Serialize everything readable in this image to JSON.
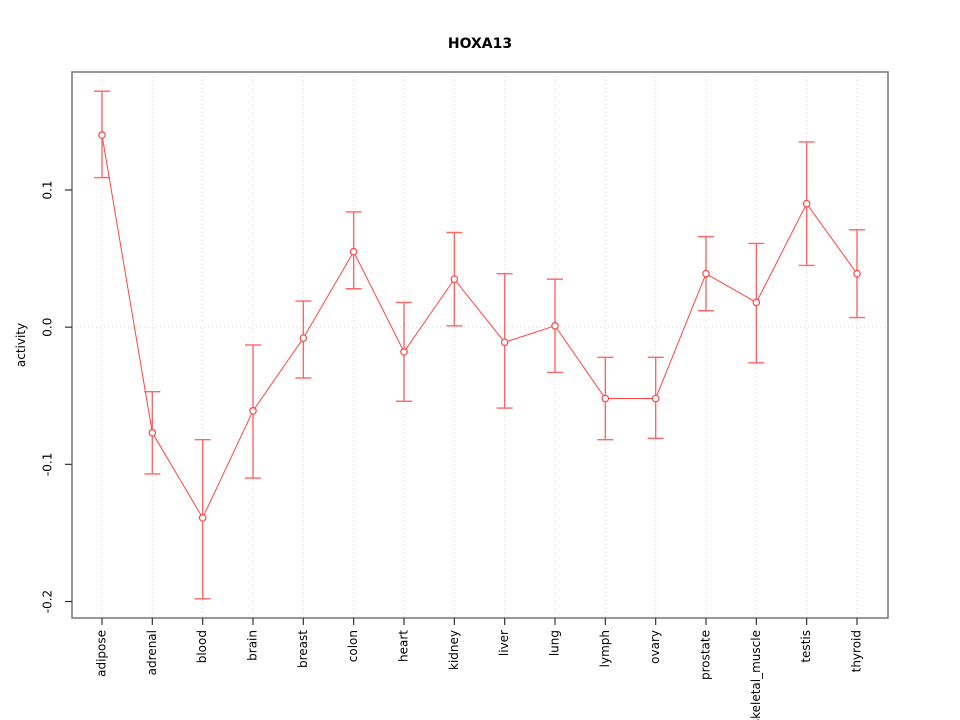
{
  "chart_data": {
    "type": "line",
    "title": "HOXA13",
    "xlabel": "",
    "ylabel": "activity",
    "categories": [
      "adipose",
      "adrenal",
      "blood",
      "brain",
      "breast",
      "colon",
      "heart",
      "kidney",
      "liver",
      "lung",
      "lymph",
      "ovary",
      "prostate",
      "skeletal_muscle",
      "testis",
      "thyroid"
    ],
    "series": [
      {
        "name": "activity",
        "values": [
          0.14,
          -0.077,
          -0.139,
          -0.061,
          -0.008,
          0.055,
          -0.018,
          0.035,
          -0.011,
          0.001,
          -0.052,
          -0.052,
          0.039,
          0.018,
          0.09,
          0.039
        ],
        "error_low": [
          0.109,
          -0.107,
          -0.198,
          -0.11,
          -0.037,
          0.028,
          -0.054,
          0.001,
          -0.059,
          -0.033,
          -0.082,
          -0.081,
          0.012,
          -0.026,
          0.045,
          0.007
        ],
        "error_high": [
          0.172,
          -0.047,
          -0.082,
          -0.013,
          0.019,
          0.084,
          0.018,
          0.069,
          0.039,
          0.035,
          -0.022,
          -0.022,
          0.066,
          0.061,
          0.135,
          0.071
        ]
      }
    ],
    "yticks": [
      0.1,
      0.0,
      -0.1,
      -0.2
    ],
    "ytick_labels": [
      "0.1",
      "0.0",
      "-0.1",
      "-0.2"
    ],
    "ylim": [
      -0.212,
      0.186
    ],
    "grid": {
      "vertical_per_category": true,
      "horizontal_zero_line": true,
      "style": "dotted"
    },
    "legend_position": "none",
    "marker": "open-circle",
    "colors": {
      "series": "#ff4444",
      "error_bar": "#ff6666",
      "grid": "#d9d9d9",
      "box": "#777777",
      "tick": "#333333",
      "text": "#000000"
    }
  }
}
